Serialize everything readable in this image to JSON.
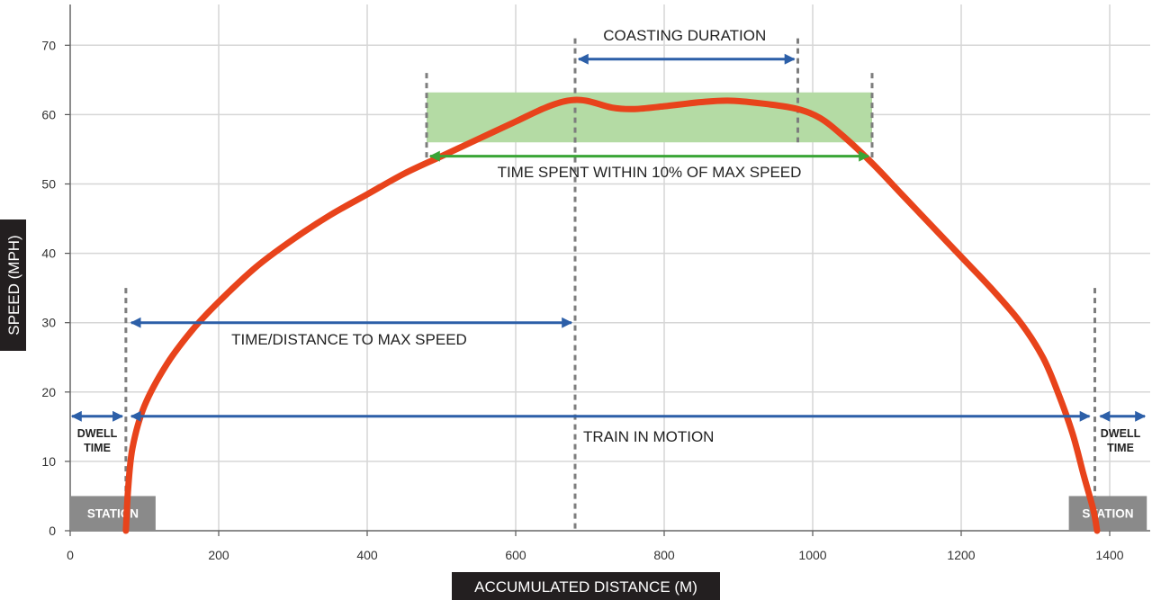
{
  "chart_data": {
    "type": "line",
    "xlabel": "ACCUMULATED DISTANCE (M)",
    "ylabel": "SPEED (MPH)",
    "xlim": [
      0,
      1450
    ],
    "ylim": [
      0,
      75
    ],
    "x_ticks": [
      0,
      200,
      400,
      600,
      800,
      1000,
      1200,
      1400
    ],
    "y_ticks": [
      0,
      10,
      20,
      30,
      40,
      50,
      60,
      70
    ],
    "grid": true,
    "series": [
      {
        "color": "#e8431b",
        "points": [
          [
            75,
            0
          ],
          [
            78,
            6
          ],
          [
            84,
            12
          ],
          [
            100,
            18
          ],
          [
            130,
            24
          ],
          [
            165,
            29
          ],
          [
            200,
            33
          ],
          [
            250,
            38
          ],
          [
            300,
            42
          ],
          [
            350,
            45.5
          ],
          [
            400,
            48.5
          ],
          [
            450,
            51.5
          ],
          [
            500,
            54
          ],
          [
            550,
            56.5
          ],
          [
            600,
            59
          ],
          [
            640,
            61
          ],
          [
            670,
            62
          ],
          [
            695,
            62
          ],
          [
            730,
            61
          ],
          [
            760,
            60.8
          ],
          [
            800,
            61.2
          ],
          [
            850,
            61.8
          ],
          [
            890,
            62
          ],
          [
            940,
            61.5
          ],
          [
            980,
            60.8
          ],
          [
            1010,
            59.5
          ],
          [
            1040,
            57
          ],
          [
            1080,
            53
          ],
          [
            1120,
            48.5
          ],
          [
            1160,
            44
          ],
          [
            1200,
            39.5
          ],
          [
            1240,
            35
          ],
          [
            1280,
            30
          ],
          [
            1310,
            25
          ],
          [
            1330,
            20
          ],
          [
            1350,
            14
          ],
          [
            1365,
            8
          ],
          [
            1378,
            3
          ],
          [
            1383,
            0
          ]
        ]
      }
    ],
    "markers": [
      75,
      680,
      980,
      1380
    ],
    "band_markers": [
      480,
      1080
    ],
    "band": {
      "x_range": [
        480,
        1080
      ],
      "y_range": [
        56,
        63.2
      ],
      "color": "#b4dba4"
    },
    "annotations": {
      "coasting": {
        "label": "COASTING DURATION",
        "range": [
          680,
          980
        ],
        "y": 68
      },
      "within_10": {
        "label": "TIME SPENT WITHIN 10% OF MAX SPEED",
        "range": [
          480,
          1080
        ],
        "y": 54
      },
      "to_max": {
        "label": "TIME/DISTANCE TO MAX SPEED",
        "range": [
          75,
          680
        ],
        "y": 30
      },
      "in_motion": {
        "label": "TRAIN IN MOTION",
        "range": [
          75,
          1380
        ],
        "y": 16.5
      },
      "dwell_left": {
        "label_line1": "DWELL",
        "label_line2": "TIME",
        "range": [
          0,
          75
        ],
        "y": 16.5
      },
      "dwell_right": {
        "label_line1": "DWELL",
        "label_line2": "TIME",
        "range": [
          1380,
          1450
        ],
        "y": 16.5
      }
    },
    "stations": [
      {
        "label": "STATION",
        "x_range": [
          0,
          115
        ],
        "y_range": [
          0,
          5
        ]
      },
      {
        "label": "STATION",
        "x_range": [
          1345,
          1450
        ],
        "y_range": [
          0,
          5
        ]
      }
    ]
  },
  "colors": {
    "curve": "#e8431b",
    "arrow_blue": "#2c5fa8",
    "arrow_green": "#3aa536",
    "marker": "#7d7d7d",
    "grid": "#d6d6d6",
    "station_box": "#8a8a8a",
    "axis_title_bg": "#231f20"
  }
}
